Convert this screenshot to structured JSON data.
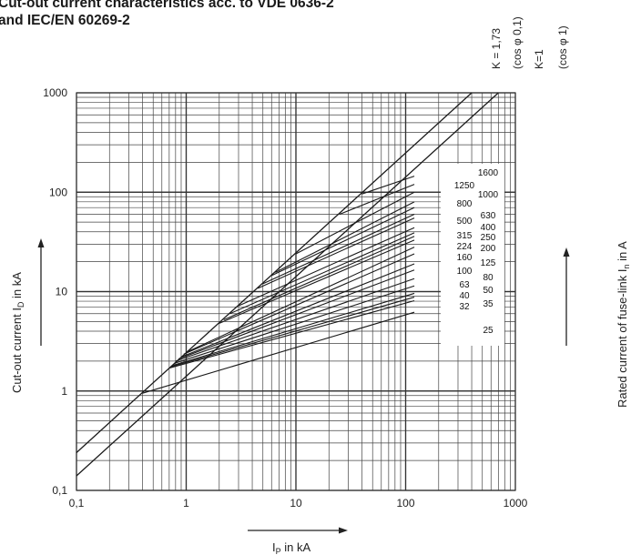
{
  "title": "Cut-out current characteristics acc. to VDE 0636-2\nand IEC/EN 60269-2",
  "chart_data": {
    "type": "line",
    "scale": "log-log",
    "title": "Cut-out current characteristics acc. to VDE 0636-2\nand IEC/EN 60269-2",
    "xlabel_main": "I",
    "xlabel_sub": "P",
    "xlabel_rest": " in kA",
    "ylabel_main": "Cut-out current I",
    "ylabel_sub": "D",
    "ylabel_rest": " in kA",
    "right_label_main": "Rated current of fuse-link I",
    "right_label_sub": "n",
    "right_label_rest": " in A",
    "xlim": [
      0.1,
      1000
    ],
    "ylim": [
      0.1,
      1000
    ],
    "x_ticks": [
      "0,1",
      "1",
      "10",
      "100",
      "1000"
    ],
    "y_ticks": [
      "0,1",
      "1",
      "10",
      "100",
      "1000"
    ],
    "grid": true,
    "k_labels": [
      "K = 1,73",
      "(cos φ 0,1)",
      "K=1",
      "(cos φ 1)"
    ],
    "reference_lines": [
      {
        "name": "K = 1,73 (cos φ 0,1)",
        "x": [
          0.1,
          400
        ],
        "y": [
          0.24,
          1000
        ]
      },
      {
        "name": "K=1 (cos φ 1)",
        "x": [
          0.1,
          700
        ],
        "y": [
          0.14,
          1000
        ]
      }
    ],
    "series": [
      {
        "name": "25",
        "x": [
          0.4,
          120
        ],
        "y": [
          0.95,
          6.2
        ]
      },
      {
        "name": "32",
        "x": [
          0.7,
          120
        ],
        "y": [
          1.7,
          8.1
        ]
      },
      {
        "name": "35",
        "x": [
          0.72,
          120
        ],
        "y": [
          1.75,
          8.8
        ]
      },
      {
        "name": "40",
        "x": [
          0.74,
          120
        ],
        "y": [
          1.8,
          9.6
        ]
      },
      {
        "name": "50",
        "x": [
          0.78,
          120
        ],
        "y": [
          1.9,
          11.4
        ]
      },
      {
        "name": "63",
        "x": [
          0.8,
          120
        ],
        "y": [
          2.0,
          13.5
        ]
      },
      {
        "name": "80",
        "x": [
          0.85,
          120
        ],
        "y": [
          2.1,
          16.5
        ]
      },
      {
        "name": "100",
        "x": [
          0.9,
          120
        ],
        "y": [
          2.2,
          19
        ]
      },
      {
        "name": "125",
        "x": [
          0.95,
          120
        ],
        "y": [
          2.35,
          24
        ]
      },
      {
        "name": "160",
        "x": [
          1.0,
          120
        ],
        "y": [
          2.45,
          28
        ]
      },
      {
        "name": "200",
        "x": [
          2.0,
          120
        ],
        "y": [
          4.8,
          33
        ]
      },
      {
        "name": "224",
        "x": [
          2.2,
          120
        ],
        "y": [
          5.2,
          36
        ]
      },
      {
        "name": "250",
        "x": [
          2.5,
          120
        ],
        "y": [
          6.0,
          39
        ]
      },
      {
        "name": "315",
        "x": [
          3.0,
          120
        ],
        "y": [
          7.2,
          44
        ]
      },
      {
        "name": "400",
        "x": [
          4.5,
          120
        ],
        "y": [
          10.8,
          55
        ]
      },
      {
        "name": "500",
        "x": [
          5.0,
          120
        ],
        "y": [
          12,
          60
        ]
      },
      {
        "name": "630",
        "x": [
          6.0,
          120
        ],
        "y": [
          14.5,
          70
        ]
      },
      {
        "name": "800",
        "x": [
          6.5,
          120
        ],
        "y": [
          15.6,
          80
        ]
      },
      {
        "name": "1000",
        "x": [
          10,
          120
        ],
        "y": [
          24,
          100
        ]
      },
      {
        "name": "1250",
        "x": [
          25,
          120
        ],
        "y": [
          60,
          120
        ]
      },
      {
        "name": "1600",
        "x": [
          40,
          120
        ],
        "y": [
          96,
          145
        ]
      }
    ],
    "labels_col1": [
      "1250",
      "800",
      "500",
      "315",
      "224",
      "160",
      "100",
      "63",
      "40",
      "32"
    ],
    "labels_col2": [
      "1600",
      "1000",
      "630",
      "400",
      "250",
      "200",
      "125",
      "80",
      "50",
      "35",
      "25"
    ]
  }
}
